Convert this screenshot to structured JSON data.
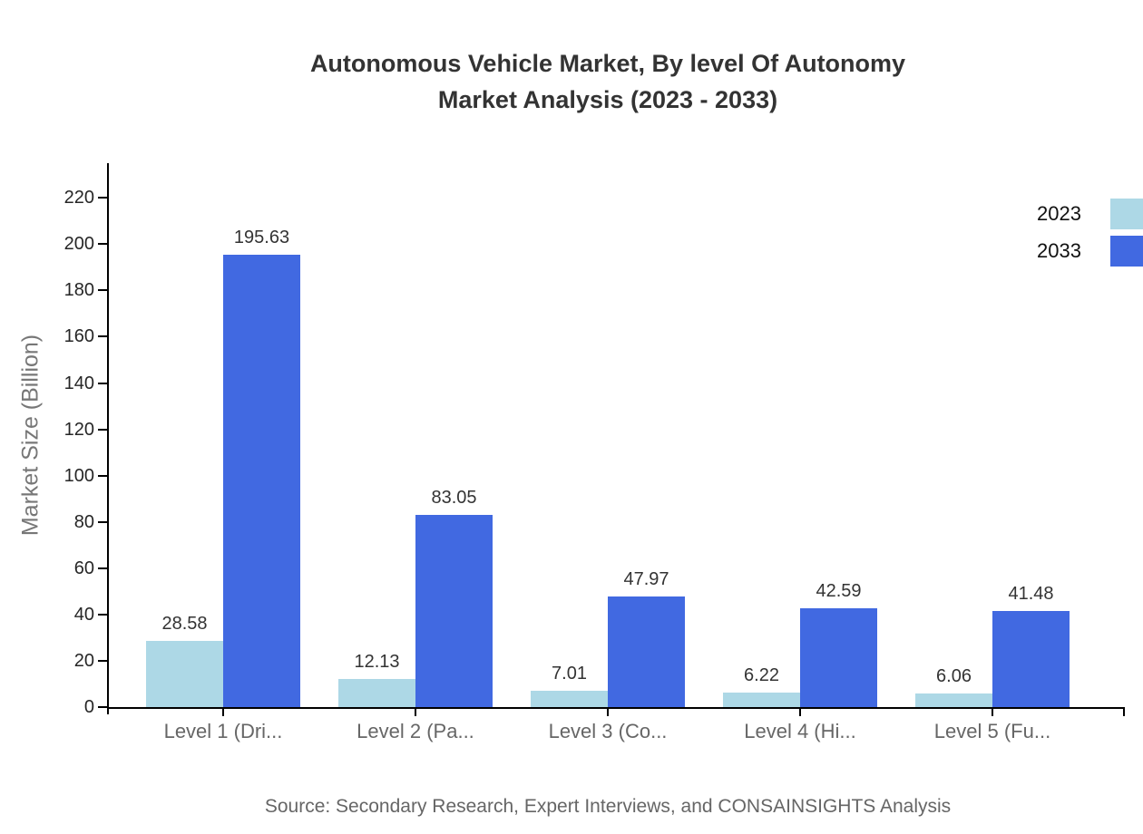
{
  "title": {
    "line1": "Autonomous Vehicle Market, By level Of Autonomy",
    "line2": "Market Analysis (2023 - 2033)"
  },
  "source": "Source: Secondary Research, Expert Interviews, and CONSAINSIGHTS Analysis",
  "legend": [
    {
      "label": "2023",
      "color": "#ADD8E6"
    },
    {
      "label": "2033",
      "color": "#4169E1"
    }
  ],
  "chart_data": {
    "type": "bar",
    "categories": [
      "Level 1 (Dri...",
      "Level 2 (Pa...",
      "Level 3 (Co...",
      "Level 4 (Hi...",
      "Level 5 (Fu..."
    ],
    "series": [
      {
        "name": "2023",
        "color": "#ADD8E6",
        "values": [
          28.58,
          12.13,
          7.01,
          6.22,
          6.06
        ]
      },
      {
        "name": "2033",
        "color": "#4169E1",
        "values": [
          195.63,
          83.05,
          47.97,
          42.59,
          41.48
        ]
      }
    ],
    "title": "Autonomous Vehicle Market, By level Of Autonomy Market Analysis (2023 - 2033)",
    "xlabel": "",
    "ylabel": "Market Size (Billion)",
    "ylim": [
      0,
      235
    ],
    "yticks": [
      0,
      20,
      40,
      60,
      80,
      100,
      120,
      140,
      160,
      180,
      200,
      220
    ],
    "grid": false,
    "legend_position": "top-right",
    "value_labels": true
  }
}
